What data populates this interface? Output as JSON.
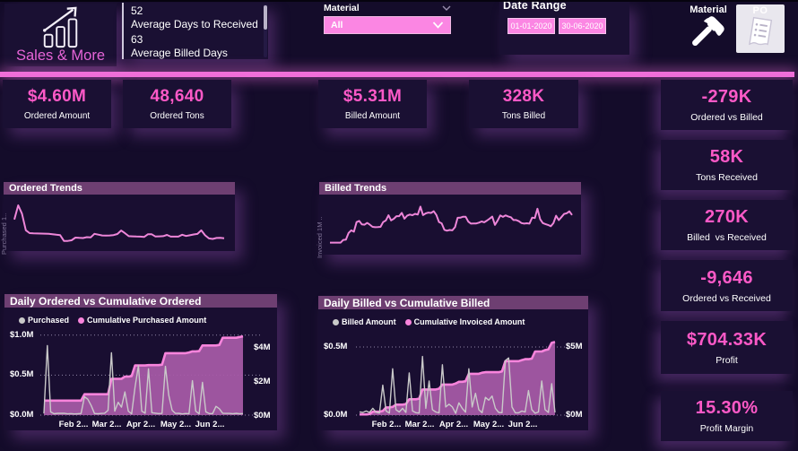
{
  "app": {
    "brand": "Sales & More",
    "brand_icon": "bar-chart-growth-icon"
  },
  "header": {
    "stats_panel": {
      "items": [
        {
          "value": "52",
          "label": "Average Days to Received"
        },
        {
          "value": "63",
          "label": "Average Billed Days"
        }
      ]
    },
    "material_slicer": {
      "label": "Material",
      "selected": "All"
    },
    "date_range": {
      "label": "Date Range",
      "start": "01-01-2020",
      "end": "30-06-2020"
    },
    "nav": {
      "material_label": "Material",
      "po_label": "PO"
    }
  },
  "kpi_row": [
    {
      "value": "$4.60M",
      "label": "Ordered Amount"
    },
    {
      "value": "48,640",
      "label": "Ordered Tons"
    },
    {
      "value": "$5.31M",
      "label": "Billed Amount"
    },
    {
      "value": "328K",
      "label": "Tons Billed"
    }
  ],
  "kpi_column": [
    {
      "value": "-279K",
      "label": "Ordered vs Billed"
    },
    {
      "value": "58K",
      "label": "Tons Received"
    },
    {
      "value": "270K",
      "label": "Billed  vs Received"
    },
    {
      "value": "-9,646",
      "label": "Ordered vs Received"
    },
    {
      "value": "$704.33K",
      "label": "Profit"
    },
    {
      "value": "15.30%",
      "label": "Profit Margin"
    }
  ],
  "colors": {
    "accent_pink": "#fb5ec9",
    "slicer_pink": "#fb86e3",
    "divider_pink": "#f06fd9",
    "title_bar": "#6e3f72",
    "area_fill": "#a85aa8",
    "cumulative_line": "#f884dc",
    "daily_line": "#c9c9c9"
  },
  "chart_data": [
    {
      "id": "ordered_trends",
      "type": "line",
      "title": "Ordered Trends",
      "y_axis_label": "Purchased 1..",
      "series": [
        {
          "name": "Purchased",
          "values": [
            0.55,
            0.85,
            0.673,
            0.325,
            0.264,
            0.259,
            0.257,
            0.255,
            0.253,
            0.251,
            0.242,
            0.23,
            0.22,
            0.1,
            0.1,
            0.113,
            0.169,
            0.165,
            0.161,
            0.18,
            0.173,
            0.249,
            0.233,
            0.215,
            0.212,
            0.216,
            0.223,
            0.245,
            0.318,
            0.262,
            0.2,
            0.197,
            0.193,
            0.19,
            0.183,
            0.24,
            0.24,
            0.192,
            0.197,
            0.2,
            0.226,
            0.19,
            0.19,
            0.19,
            0.23,
            0.203,
            0.219,
            0.235,
            0.248,
            0.322,
            0.219,
            0.152,
            0.141,
            0.162,
            0.164,
            0.155
          ]
        }
      ],
      "ylim": [
        0,
        1
      ],
      "grid": false,
      "legend_position": "none"
    },
    {
      "id": "billed_trends",
      "type": "line",
      "title": "Billed Trends",
      "y_axis_label": "Invoiced 1M ..",
      "series": [
        {
          "name": "Invoiced",
          "values": [
            0.13,
            0.13,
            0.13,
            0.13,
            0.13,
            0.182,
            0.188,
            0.319,
            0.37,
            0.344,
            0.531,
            0.554,
            0.486,
            0.48,
            0.516,
            0.481,
            0.439,
            0.432,
            0.434,
            0.439,
            0.531,
            0.563,
            0.665,
            0.565,
            0.596,
            0.647,
            0.647,
            0.713,
            0.599,
            0.657,
            0.679,
            0.666,
            0.693,
            0.679,
            0.834,
            0.668,
            0.702,
            0.717,
            0.711,
            0.744,
            0.67,
            0.533,
            0.507,
            0.38,
            0.363,
            0.377,
            0.371,
            0.433,
            0.615,
            0.617,
            0.637,
            0.636,
            0.541,
            0.502,
            0.504,
            0.506,
            0.521,
            0.543,
            0.528,
            0.562,
            0.598,
            0.639,
            0.478,
            0.558,
            0.661,
            0.633,
            0.664,
            0.642,
            0.627,
            0.572,
            0.572,
            0.549,
            0.512,
            0.501,
            0.509,
            0.501,
            0.619,
            0.61,
            0.793,
            0.589,
            0.512,
            0.493,
            0.476,
            0.451,
            0.51,
            0.656,
            0.57,
            0.628,
            0.692,
            0.705,
            0.742,
            0.67
          ]
        }
      ],
      "ylim": [
        0,
        1
      ],
      "grid": false,
      "legend_position": "none"
    },
    {
      "id": "daily_ordered",
      "type": "combo-line-area",
      "title": "Daily Ordered vs Cumulative Ordered",
      "legend": [
        {
          "name": "Purchased",
          "color": "#c9c9c9"
        },
        {
          "name": "Cumulative Purchased Amount",
          "color": "#f884dc"
        }
      ],
      "x_ticks": [
        "Feb 2...",
        "Mar 2...",
        "Apr 2...",
        "May 2...",
        "Jun 2..."
      ],
      "left_ticks": [
        "$1.0M",
        "$0.5M",
        "$0.0M"
      ],
      "right_ticks": [
        "$4M",
        "$2M",
        "$0M"
      ],
      "left_tick_values": [
        1.0,
        0.5,
        0.0
      ],
      "right_tick_values": [
        4,
        2,
        0
      ],
      "left_axis_unit": "$M",
      "right_axis_unit": "$M",
      "daily": [
        0.021,
        0.87,
        0.04,
        0.017,
        0.022,
        0.022,
        0.024,
        0.016,
        0.019,
        0.015,
        0.017,
        0.02,
        0.23,
        0.2,
        0.12,
        0.02,
        0.017,
        0.021,
        0.023,
        0.06,
        0.78,
        0.05,
        0.16,
        0.1,
        0.29,
        0.05,
        0.016,
        0.35,
        0.62,
        0.05,
        0.023,
        0.58,
        0.03,
        0.025,
        0.019,
        0.021,
        0.61,
        0.25,
        0.06,
        0.021,
        0.022,
        0.015,
        0.02,
        0.018,
        0.43,
        0.05,
        0.016,
        0.41,
        0.04,
        0.019,
        0.019,
        0.11,
        0.08,
        0.024,
        0.021,
        0.021,
        0.017,
        0.022,
        0.017,
        0.019
      ],
      "cumulative": [
        0.85,
        0.85,
        0.85,
        0.85,
        0.85,
        0.85,
        0.85,
        0.85,
        0.85,
        0.85,
        0.85,
        0.85,
        1.22,
        1.22,
        1.22,
        1.22,
        1.22,
        1.22,
        1.22,
        1.22,
        2.12,
        2.12,
        2.12,
        2.12,
        2.25,
        2.25,
        2.28,
        2.9,
        2.9,
        2.9,
        2.9,
        2.92,
        2.92,
        2.92,
        2.92,
        2.95,
        3.62,
        3.62,
        3.62,
        3.62,
        3.62,
        3.62,
        3.62,
        3.66,
        3.72,
        3.72,
        3.74,
        4.07,
        4.07,
        4.07,
        4.07,
        4.07,
        4.1,
        4.52,
        4.52,
        4.52,
        4.52,
        4.52,
        4.56,
        4.6
      ],
      "grid": true,
      "legend_position": "top"
    },
    {
      "id": "daily_billed",
      "type": "combo-line-area",
      "title": "Daily Billed vs Cumulative Billed",
      "legend": [
        {
          "name": "Billed Amount",
          "color": "#c9c9c9"
        },
        {
          "name": "Cumulative Invoiced Amount",
          "color": "#f884dc"
        }
      ],
      "x_ticks": [
        "Feb 2...",
        "Mar 2...",
        "Apr 2...",
        "May 2...",
        "Jun 2..."
      ],
      "left_ticks": [
        "$0.5M",
        "$0.0M"
      ],
      "right_ticks": [
        "$5M",
        "$0M"
      ],
      "left_tick_values": [
        0.5,
        0.0
      ],
      "right_tick_values": [
        5,
        0
      ],
      "left_axis_unit": "$M",
      "right_axis_unit": "$M",
      "daily": [
        0.024,
        0.02,
        0.03,
        0.02,
        0.05,
        0.021,
        0.015,
        0.22,
        0.03,
        0.015,
        0.34,
        0.04,
        0.023,
        0.05,
        0.02,
        0.31,
        0.03,
        0.018,
        0.015,
        0.43,
        0.05,
        0.25,
        0.04,
        0.023,
        0.017,
        0.37,
        0.06,
        0.08,
        0.06,
        0.013,
        0.09,
        0.05,
        0.022,
        0.34,
        0.06,
        0.16,
        0.04,
        0.018,
        0.13,
        0.11,
        0.14,
        0.05,
        0.02,
        0.018,
        0.4,
        0.42,
        0.06,
        0.017,
        0.017,
        0.03,
        0.023,
        0.18,
        0.04,
        0.014,
        0.023,
        0.25,
        0.04,
        0.02,
        0.23,
        0.02
      ],
      "cumulative": [
        0.05,
        0.05,
        0.05,
        0.08,
        0.25,
        0.25,
        0.25,
        0.3,
        0.56,
        0.56,
        0.6,
        0.76,
        0.76,
        0.76,
        0.8,
        1.15,
        1.15,
        1.15,
        1.2,
        1.86,
        1.86,
        1.86,
        1.86,
        1.86,
        1.92,
        2.22,
        2.22,
        2.22,
        2.22,
        2.3,
        2.42,
        2.42,
        2.46,
        3.0,
        3.0,
        3.0,
        3.0,
        3.08,
        3.12,
        3.12,
        3.12,
        3.12,
        3.12,
        3.18,
        3.92,
        3.92,
        3.92,
        3.92,
        3.92,
        4.0,
        4.06,
        4.06,
        4.1,
        4.62,
        4.62,
        4.62,
        4.72,
        4.78,
        5.25,
        5.31
      ],
      "grid": true,
      "legend_position": "top"
    }
  ]
}
